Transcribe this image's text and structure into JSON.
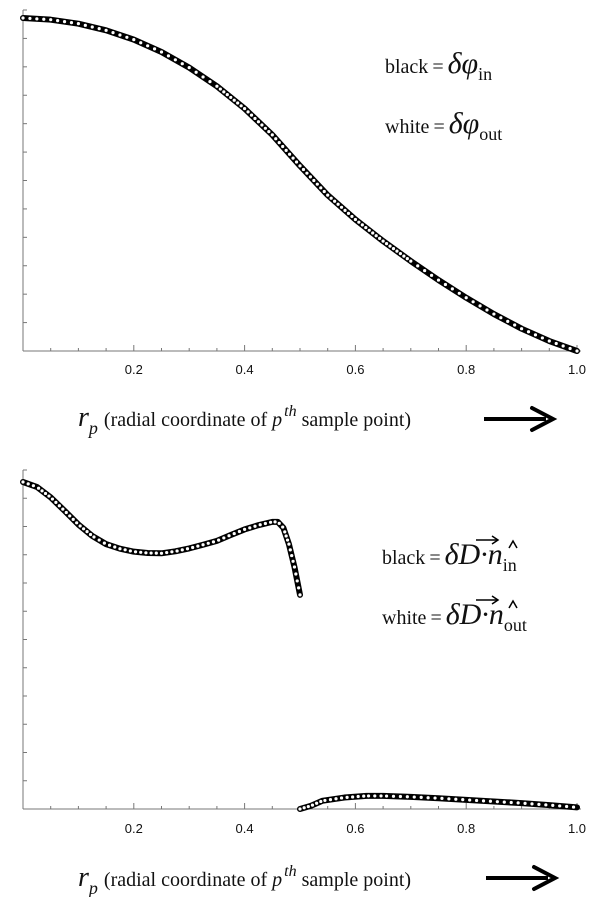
{
  "chart_data": [
    {
      "type": "line",
      "title": "",
      "xlabel": {
        "symbol": "r",
        "subscript": "p",
        "text_before": "(radial coordinate of ",
        "italic": "p",
        "superscript": "th",
        "text_after": " sample point)"
      },
      "ylabel": "",
      "xlim": [
        0.0,
        1.0
      ],
      "x_ticks": [
        "0.2",
        "0.4",
        "0.6",
        "0.8",
        "1.0"
      ],
      "y_axis_minor_ticks": true,
      "grid": false,
      "legend_position": "top-right",
      "legend": [
        {
          "label": "black",
          "eq": "=",
          "sym": "δφ",
          "sub": "in"
        },
        {
          "label": "white",
          "eq": "=",
          "sym": "δφ",
          "sub": "out"
        }
      ],
      "series": [
        {
          "style": "black",
          "x": [
            0.0,
            0.05,
            0.1,
            0.15,
            0.2,
            0.25,
            0.3,
            0.35,
            0.4,
            0.45,
            0.5,
            0.55,
            0.6,
            0.65,
            0.7,
            0.75,
            0.8,
            0.85,
            0.9,
            0.95,
            1.0
          ],
          "y": [
            1.0,
            0.995,
            0.983,
            0.963,
            0.935,
            0.898,
            0.851,
            0.795,
            0.728,
            0.649,
            0.556,
            0.468,
            0.395,
            0.33,
            0.27,
            0.213,
            0.16,
            0.111,
            0.067,
            0.03,
            0.0
          ]
        },
        {
          "style": "white",
          "x": [
            0.0,
            0.05,
            0.1,
            0.15,
            0.2,
            0.25,
            0.3,
            0.35,
            0.4,
            0.45,
            0.5,
            0.55,
            0.6,
            0.65,
            0.7,
            0.75,
            0.8,
            0.85,
            0.9,
            0.95,
            1.0
          ],
          "y": [
            1.0,
            0.995,
            0.983,
            0.963,
            0.935,
            0.898,
            0.851,
            0.795,
            0.728,
            0.649,
            0.556,
            0.468,
            0.395,
            0.33,
            0.27,
            0.213,
            0.16,
            0.111,
            0.067,
            0.03,
            0.0
          ]
        }
      ],
      "arrow_icon": "right-arrow-icon"
    },
    {
      "type": "line",
      "title": "",
      "xlabel": {
        "symbol": "r",
        "subscript": "p",
        "text_before": "(radial coordinate of ",
        "italic": "p",
        "superscript": "th",
        "text_after": " sample point)"
      },
      "ylabel": "",
      "xlim": [
        0.0,
        1.0
      ],
      "x_ticks": [
        "0.2",
        "0.4",
        "0.6",
        "0.8",
        "1.0"
      ],
      "y_axis_minor_ticks": true,
      "grid": false,
      "legend_position": "right",
      "legend": [
        {
          "label": "black",
          "eq": "=",
          "sym": "δD·n",
          "sub": "in"
        },
        {
          "label": "white",
          "eq": "=",
          "sym": "δD·n",
          "sub": "out"
        }
      ],
      "series": [
        {
          "style": "black",
          "segments": [
            {
              "x": [
                0.0,
                0.025,
                0.05,
                0.075,
                0.1,
                0.125,
                0.15,
                0.175,
                0.2,
                0.225,
                0.25,
                0.275,
                0.3,
                0.325,
                0.35,
                0.375,
                0.4,
                0.425,
                0.45,
                0.46,
                0.47,
                0.48,
                0.49,
                0.5
              ],
              "y": [
                1.0,
                0.985,
                0.953,
                0.912,
                0.87,
                0.835,
                0.81,
                0.796,
                0.787,
                0.783,
                0.782,
                0.788,
                0.797,
                0.808,
                0.82,
                0.838,
                0.855,
                0.868,
                0.878,
                0.878,
                0.86,
                0.81,
                0.74,
                0.655
              ]
            },
            {
              "x": [
                0.5,
                0.52,
                0.54,
                0.58,
                0.62,
                0.65,
                0.7,
                0.75,
                0.8,
                0.85,
                0.9,
                0.95,
                1.0
              ],
              "y": [
                0.0,
                0.01,
                0.025,
                0.035,
                0.04,
                0.04,
                0.037,
                0.033,
                0.028,
                0.023,
                0.018,
                0.012,
                0.005
              ]
            }
          ]
        },
        {
          "style": "white",
          "segments": [
            {
              "x": [
                0.0,
                0.025,
                0.05,
                0.075,
                0.1,
                0.125,
                0.15,
                0.175,
                0.2,
                0.225,
                0.25,
                0.275,
                0.3,
                0.325,
                0.35,
                0.375,
                0.4,
                0.425,
                0.45,
                0.46,
                0.47,
                0.48,
                0.49,
                0.5
              ],
              "y": [
                1.0,
                0.985,
                0.953,
                0.912,
                0.87,
                0.835,
                0.81,
                0.796,
                0.787,
                0.783,
                0.782,
                0.788,
                0.797,
                0.808,
                0.82,
                0.838,
                0.855,
                0.868,
                0.878,
                0.878,
                0.86,
                0.81,
                0.74,
                0.655
              ]
            },
            {
              "x": [
                0.5,
                0.52,
                0.54,
                0.58,
                0.62,
                0.65,
                0.7,
                0.75,
                0.8,
                0.85,
                0.9,
                0.95,
                1.0
              ],
              "y": [
                0.0,
                0.01,
                0.025,
                0.035,
                0.04,
                0.04,
                0.037,
                0.033,
                0.028,
                0.023,
                0.018,
                0.012,
                0.005
              ]
            }
          ]
        }
      ],
      "arrow_icon": "right-arrow-icon"
    }
  ]
}
